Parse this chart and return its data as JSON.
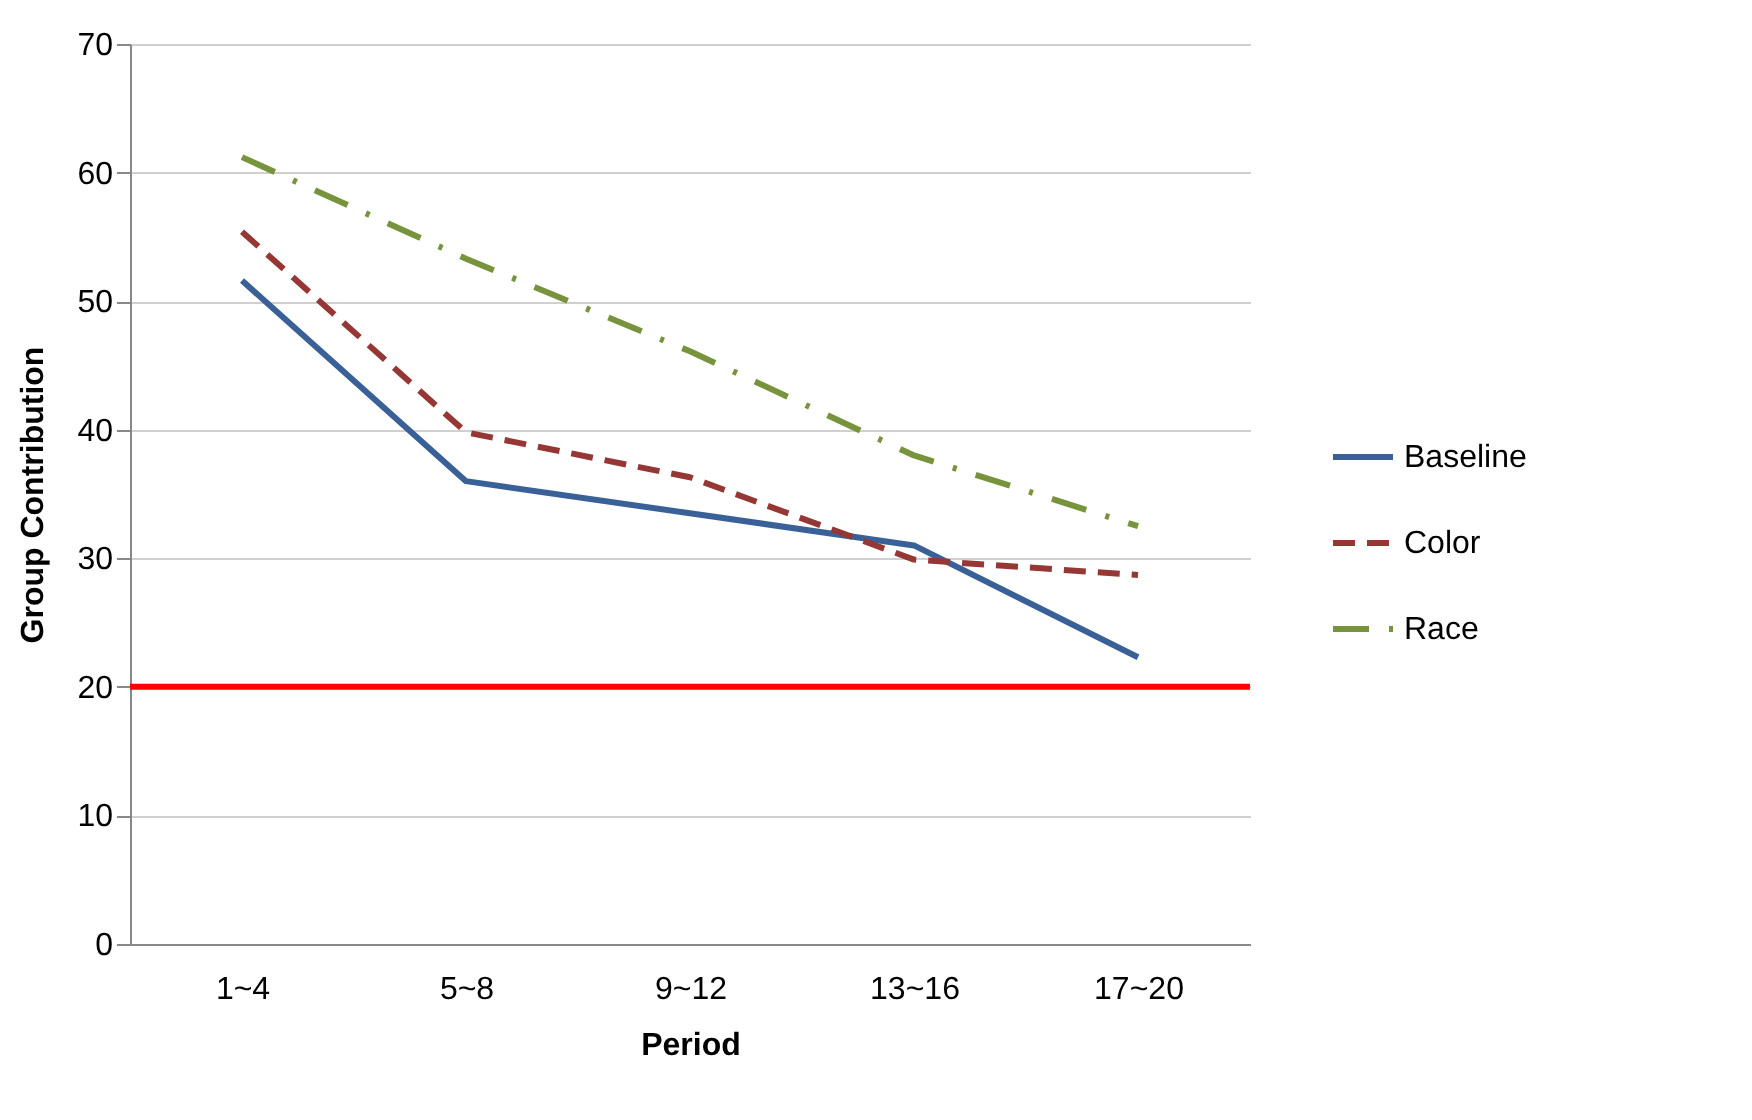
{
  "chart_data": {
    "type": "line",
    "xlabel": "Period",
    "ylabel": "Group Contribution",
    "categories": [
      "1~4",
      "5~8",
      "9~12",
      "13~16",
      "17~20"
    ],
    "series": [
      {
        "name": "Baseline",
        "color": "#3a6197",
        "line_style": "solid",
        "values": [
          51.6,
          36.0,
          33.5,
          31.0,
          22.3
        ]
      },
      {
        "name": "Color",
        "color": "#953735",
        "line_style": "dashed",
        "values": [
          55.4,
          39.8,
          36.3,
          29.9,
          28.7
        ]
      },
      {
        "name": "Race",
        "color": "#77933c",
        "line_style": "dashdot",
        "values": [
          61.2,
          53.3,
          46.1,
          38.0,
          32.5
        ]
      }
    ],
    "ylim": [
      0,
      70
    ],
    "yticks": [
      0,
      10,
      20,
      30,
      40,
      50,
      60,
      70
    ],
    "grid": "y",
    "legend": "right",
    "marker": "none",
    "ref_lines": [
      {
        "axis": "y",
        "value": 20,
        "color": "#ff0000"
      }
    ]
  }
}
